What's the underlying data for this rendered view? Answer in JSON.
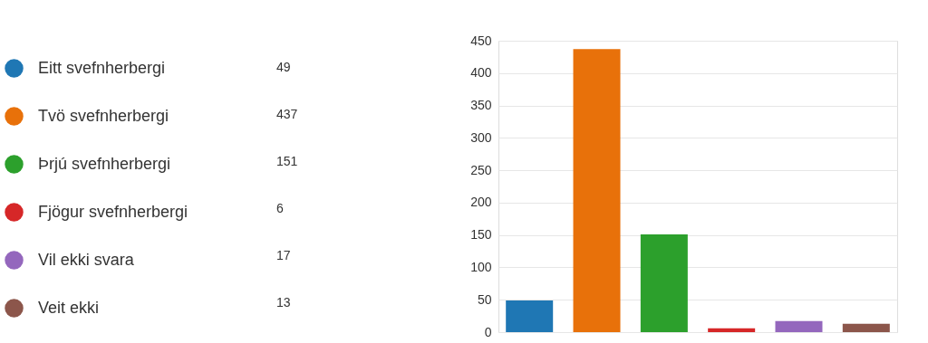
{
  "chart_data": {
    "type": "bar",
    "categories": [
      null,
      null,
      null,
      null,
      null,
      null
    ],
    "series": [
      {
        "name": "Eitt svefnherbergi",
        "color": "#1f77b4",
        "values": [
          49,
          null,
          null,
          null,
          null,
          null
        ]
      },
      {
        "name": "Tvö svefnherbergi",
        "color": "#e8710a",
        "values": [
          null,
          437,
          null,
          null,
          null,
          null
        ]
      },
      {
        "name": "Þrjú svefnherbergi",
        "color": "#2ca02c",
        "values": [
          null,
          null,
          151,
          null,
          null,
          null
        ]
      },
      {
        "name": "Fjögur svefnherbergi",
        "color": "#d62728",
        "values": [
          null,
          null,
          null,
          6,
          null,
          null
        ]
      },
      {
        "name": "Vil ekki svara",
        "color": "#9467bd",
        "values": [
          null,
          null,
          null,
          null,
          17,
          null
        ]
      },
      {
        "name": "Veit ekki",
        "color": "#8c564b",
        "values": [
          null,
          null,
          null,
          null,
          null,
          13
        ]
      }
    ],
    "ylim": [
      0,
      450
    ],
    "yticks": [
      0,
      50,
      100,
      150,
      200,
      250,
      300,
      350,
      400,
      450
    ],
    "annotations": [
      "49",
      "437",
      "151",
      "6",
      "17",
      "13"
    ],
    "grid": "y",
    "legend": "left",
    "tick_labels": "y"
  }
}
